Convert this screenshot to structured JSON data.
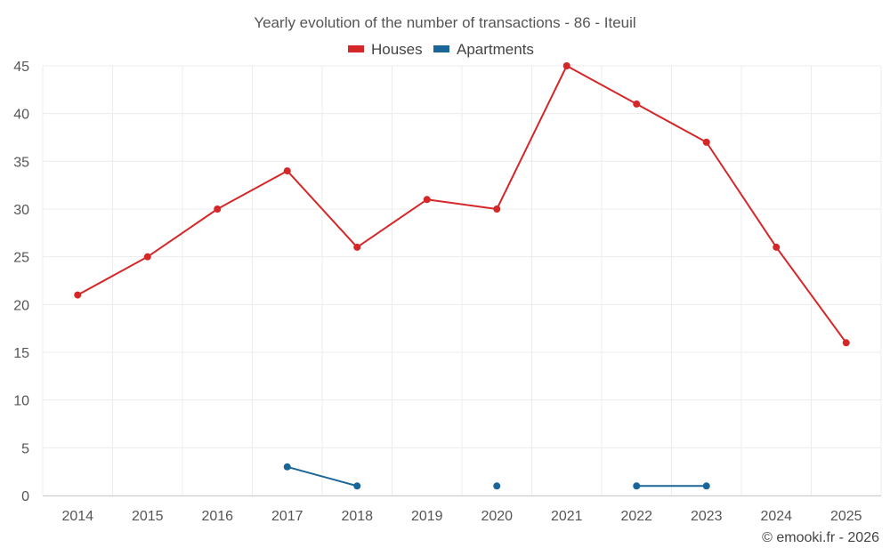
{
  "chart_data": {
    "type": "line",
    "title": "Yearly evolution of the number of transactions - 86 - Iteuil",
    "categories": [
      "2014",
      "2015",
      "2016",
      "2017",
      "2018",
      "2019",
      "2020",
      "2021",
      "2022",
      "2023",
      "2024",
      "2025"
    ],
    "ylim": [
      0,
      45
    ],
    "yticks": [
      "0",
      "5",
      "10",
      "15",
      "20",
      "25",
      "30",
      "35",
      "40",
      "45"
    ],
    "grid": true,
    "legend_position": "top-center",
    "series": [
      {
        "name": "Houses",
        "color": "#d62728",
        "values": [
          21,
          25,
          30,
          34,
          26,
          31,
          30,
          45,
          41,
          37,
          26,
          16
        ]
      },
      {
        "name": "Apartments",
        "color": "#1a6699",
        "values": [
          null,
          null,
          null,
          3,
          1,
          null,
          1,
          null,
          1,
          1,
          null,
          null
        ]
      }
    ],
    "credit": "© emooki.fr - 2026"
  }
}
